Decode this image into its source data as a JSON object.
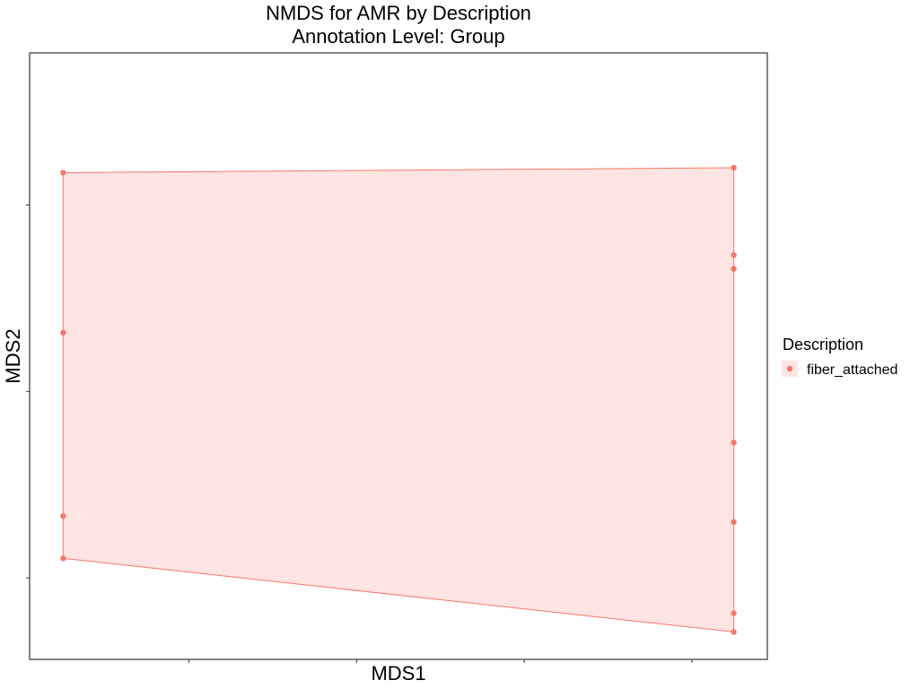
{
  "chart_data": {
    "type": "scatter",
    "title": "NMDS for AMR by Description",
    "subtitle": "Annotation Level: Group",
    "xlabel": "MDS1",
    "ylabel": "MDS2",
    "grid": false,
    "legend_placement": "right",
    "legend_title": "Description",
    "series": [
      {
        "name": "fiber_attached",
        "color": "#F8766D",
        "hull": true,
        "points": [
          {
            "x": -0.4,
            "y": 0.223
          },
          {
            "x": -0.4,
            "y": 0.06
          },
          {
            "x": -0.4,
            "y": -0.127
          },
          {
            "x": -0.4,
            "y": -0.17
          },
          {
            "x": 0.4,
            "y": 0.228
          },
          {
            "x": 0.4,
            "y": 0.139
          },
          {
            "x": 0.4,
            "y": 0.125
          },
          {
            "x": 0.4,
            "y": -0.052
          },
          {
            "x": 0.4,
            "y": -0.133
          },
          {
            "x": 0.4,
            "y": -0.226
          },
          {
            "x": 0.4,
            "y": -0.245
          }
        ]
      }
    ],
    "xlim": [
      -0.44,
      0.44
    ],
    "ylim": [
      -0.273,
      0.345
    ],
    "x_ticks": [
      -0.25,
      -0.05,
      0.15,
      0.35
    ],
    "y_ticks": [
      -0.19,
      0.0,
      0.19
    ]
  }
}
